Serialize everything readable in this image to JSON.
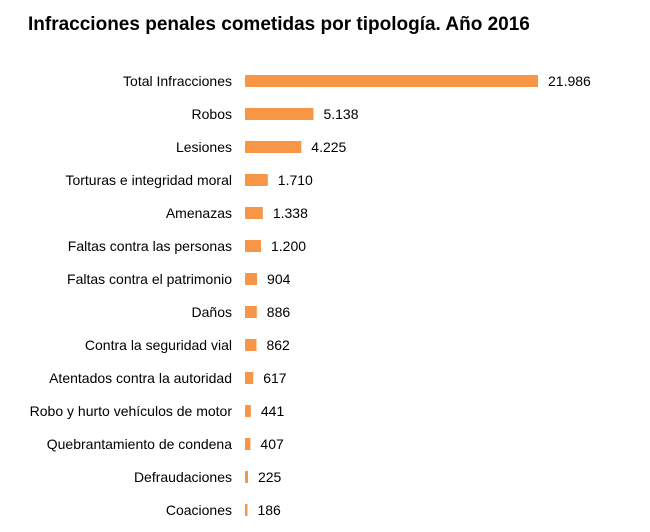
{
  "chart_data": {
    "type": "bar",
    "orientation": "horizontal",
    "title": "Infracciones penales cometidas por tipología. Año 2016",
    "categories": [
      "Total Infracciones",
      "Robos",
      "Lesiones",
      "Torturas e integridad moral",
      "Amenazas",
      "Faltas contra las personas",
      "Faltas contra el patrimonio",
      "Daños",
      "Contra la seguridad vial",
      "Atentados contra la autoridad",
      "Robo y hurto vehículos de motor",
      "Quebrantamiento de condena",
      "Defraudaciones",
      "Coaciones"
    ],
    "values": [
      21986,
      5138,
      4225,
      1710,
      1338,
      1200,
      904,
      886,
      862,
      617,
      441,
      407,
      225,
      186
    ],
    "value_labels": [
      "21.986",
      "5.138",
      "4.225",
      "1.710",
      "1.338",
      "1.200",
      "904",
      "886",
      "862",
      "617",
      "441",
      "407",
      "225",
      "186"
    ],
    "xlim": [
      0,
      21986
    ],
    "grid": false,
    "legend": "none",
    "bar_color": "#F79646"
  }
}
